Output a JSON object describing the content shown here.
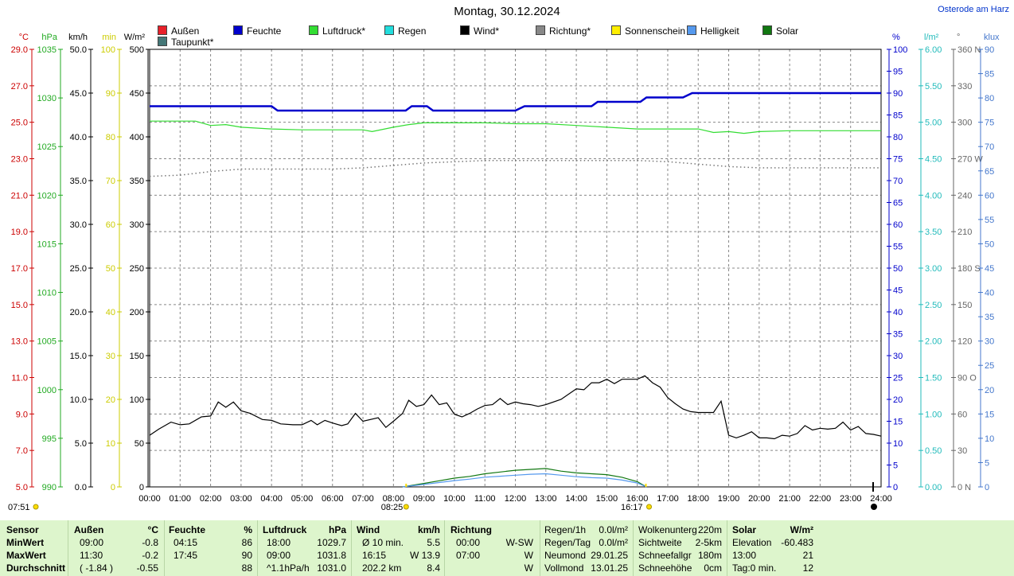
{
  "title": "Montag, 30.12.2024",
  "station": "Osterode am Harz",
  "legend": [
    {
      "label": "Außen",
      "color": "#e8202a"
    },
    {
      "label": "Feuchte",
      "color": "#0000cc"
    },
    {
      "label": "Luftdruck*",
      "color": "#33dd33"
    },
    {
      "label": "Regen",
      "color": "#22dddd"
    },
    {
      "label": "Wind*",
      "color": "#000000"
    },
    {
      "label": "Richtung*",
      "color": "#888888"
    },
    {
      "label": "Sonnenschein",
      "color": "#ffee00"
    },
    {
      "label": "Helligkeit",
      "color": "#5599ee"
    },
    {
      "label": "Solar",
      "color": "#117711"
    },
    {
      "label": "Taupunkt*",
      "color": "#447777"
    }
  ],
  "axes_left": [
    {
      "unit": "°C",
      "color": "#cc0000",
      "ticks": [
        "29.0",
        "27.0",
        "25.0",
        "23.0",
        "21.0",
        "19.0",
        "17.0",
        "15.0",
        "13.0",
        "11.0",
        "9.0",
        "7.0",
        "5.0"
      ]
    },
    {
      "unit": "hPa",
      "color": "#22aa22",
      "ticks": [
        "1035",
        "1030",
        "1025",
        "1020",
        "1015",
        "1010",
        "1005",
        "1000",
        "995",
        "990"
      ]
    },
    {
      "unit": "km/h",
      "color": "#000000",
      "ticks": [
        "50.0",
        "45.0",
        "40.0",
        "35.0",
        "30.0",
        "25.0",
        "20.0",
        "15.0",
        "10.0",
        "5.0",
        "0.0"
      ]
    },
    {
      "unit": "min",
      "color": "#cccc00",
      "ticks": [
        "100",
        "90",
        "80",
        "70",
        "60",
        "50",
        "40",
        "30",
        "20",
        "10",
        "0"
      ]
    },
    {
      "unit": "W/m²",
      "color": "#000000",
      "ticks": [
        "500",
        "450",
        "400",
        "350",
        "300",
        "250",
        "200",
        "150",
        "100",
        "50",
        "0"
      ]
    }
  ],
  "axes_right": [
    {
      "unit": "%",
      "color": "#0000cc",
      "ticks": [
        "100",
        "95",
        "90",
        "85",
        "80",
        "75",
        "70",
        "65",
        "60",
        "55",
        "50",
        "45",
        "40",
        "35",
        "30",
        "25",
        "20",
        "15",
        "10",
        "5",
        "0"
      ]
    },
    {
      "unit": "l/m²",
      "color": "#22bbbb",
      "ticks": [
        "6.00",
        "5.50",
        "5.00",
        "4.50",
        "4.00",
        "3.50",
        "3.00",
        "2.50",
        "2.00",
        "1.50",
        "1.00",
        "0.50",
        "0.00"
      ]
    },
    {
      "unit": "°",
      "color": "#666666",
      "ticks": [
        "360 N",
        "330",
        "300",
        "270 W",
        "240",
        "210",
        "180 S",
        "150",
        "120",
        "90 O",
        "60",
        "30",
        "0 N"
      ]
    },
    {
      "unit": "klux",
      "color": "#4477cc",
      "ticks": [
        "90",
        "85",
        "80",
        "75",
        "70",
        "65",
        "60",
        "55",
        "50",
        "45",
        "40",
        "35",
        "30",
        "25",
        "20",
        "15",
        "10",
        "5",
        "0"
      ]
    }
  ],
  "x_ticks": [
    "00:00",
    "01:00",
    "02:00",
    "03:00",
    "04:00",
    "05:00",
    "06:00",
    "07:00",
    "08:00",
    "09:00",
    "10:00",
    "11:00",
    "12:00",
    "13:00",
    "14:00",
    "15:00",
    "16:00",
    "17:00",
    "18:00",
    "19:00",
    "20:00",
    "21:00",
    "22:00",
    "23:00",
    "24:00"
  ],
  "sun_markers": {
    "sunrise": "07:51",
    "sunrise_marker": "08:25",
    "sunset": "16:17"
  },
  "chart_data": {
    "type": "line",
    "x_unit": "hours",
    "xlim": [
      0,
      24
    ],
    "series": [
      {
        "name": "Feuchte",
        "color": "#0000cc",
        "axis": "%",
        "ylim": [
          0,
          100
        ],
        "x": [
          0,
          4.0,
          4.2,
          8.4,
          8.6,
          9.1,
          9.3,
          12.0,
          12.3,
          14.5,
          14.7,
          15.5,
          16.1,
          16.3,
          17.5,
          17.8,
          24
        ],
        "values": [
          87,
          87,
          86,
          86,
          87,
          87,
          86,
          86,
          87,
          87,
          88,
          88,
          88,
          89,
          89,
          90,
          90
        ]
      },
      {
        "name": "Luftdruck*",
        "color": "#33dd33",
        "axis": "hPa",
        "ylim": [
          990,
          1040
        ],
        "x": [
          0,
          1.5,
          2.0,
          2.5,
          3.0,
          4.0,
          5.0,
          6.0,
          7.0,
          7.3,
          8.0,
          8.5,
          9.0,
          10.0,
          11.0,
          12.0,
          13.0,
          14.0,
          15.0,
          16.0,
          17.0,
          18.0,
          18.5,
          19.0,
          19.5,
          20.0,
          21.0,
          22.0,
          23.0,
          24.0
        ],
        "values": [
          1031.8,
          1031.8,
          1031.3,
          1031.4,
          1031.1,
          1030.9,
          1030.8,
          1030.8,
          1030.8,
          1030.6,
          1031.1,
          1031.4,
          1031.6,
          1031.6,
          1031.6,
          1031.5,
          1031.5,
          1031.3,
          1031.1,
          1030.9,
          1030.9,
          1030.9,
          1030.5,
          1030.6,
          1030.4,
          1030.6,
          1030.7,
          1030.7,
          1030.7,
          1030.7
        ]
      },
      {
        "name": "Richtung*",
        "color": "#777777",
        "axis": "°",
        "ylim": [
          0,
          360
        ],
        "dotted": true,
        "x": [
          0,
          1,
          2,
          3,
          4,
          5,
          6,
          7,
          8,
          9,
          10,
          11,
          12,
          13,
          14,
          15,
          16,
          17,
          18,
          19,
          20,
          21,
          22,
          23,
          24
        ],
        "values": [
          256,
          257,
          260,
          262,
          262,
          262,
          262,
          263,
          265,
          267,
          268,
          269,
          269,
          269,
          269,
          269,
          269,
          268,
          266,
          264,
          263,
          263,
          263,
          263,
          263
        ]
      },
      {
        "name": "Wind*",
        "color": "#000000",
        "axis": "km/h",
        "ylim": [
          0,
          50
        ],
        "x": [
          0,
          0.3,
          0.7,
          1.0,
          1.3,
          1.7,
          2.0,
          2.25,
          2.5,
          2.75,
          3.0,
          3.3,
          3.7,
          4.0,
          4.3,
          4.7,
          5.0,
          5.3,
          5.5,
          5.75,
          6.0,
          6.3,
          6.5,
          6.75,
          7.0,
          7.5,
          7.75,
          8.0,
          8.3,
          8.5,
          8.75,
          9.0,
          9.25,
          9.5,
          9.75,
          10.0,
          10.25,
          10.5,
          10.75,
          11.0,
          11.25,
          11.5,
          11.75,
          12.0,
          12.25,
          12.5,
          12.75,
          13.0,
          13.5,
          14.0,
          14.25,
          14.5,
          14.75,
          15.0,
          15.25,
          15.5,
          15.75,
          16.0,
          16.25,
          16.5,
          16.75,
          17.0,
          17.25,
          17.5,
          17.75,
          18.0,
          18.5,
          18.75,
          19.0,
          19.25,
          19.5,
          19.75,
          20.0,
          20.25,
          20.5,
          20.75,
          21.0,
          21.25,
          21.5,
          21.75,
          22.0,
          22.25,
          22.5,
          22.75,
          23.0,
          23.25,
          23.5,
          23.75,
          24.0
        ],
        "values": [
          5.9,
          6.6,
          7.4,
          7.1,
          7.2,
          8.0,
          8.1,
          9.7,
          9.1,
          9.7,
          8.7,
          8.4,
          7.7,
          7.6,
          7.2,
          7.1,
          7.1,
          7.6,
          7.1,
          7.6,
          7.3,
          7.0,
          7.2,
          8.4,
          7.5,
          7.9,
          6.8,
          7.5,
          8.4,
          9.9,
          9.2,
          9.4,
          10.5,
          9.4,
          9.6,
          8.3,
          8.0,
          8.4,
          8.9,
          9.3,
          9.4,
          10.1,
          9.4,
          9.7,
          9.5,
          9.4,
          9.2,
          9.4,
          10.0,
          11.2,
          11.1,
          11.9,
          11.9,
          12.3,
          11.8,
          12.3,
          12.3,
          12.3,
          12.7,
          11.9,
          11.4,
          10.2,
          9.5,
          8.9,
          8.6,
          8.5,
          8.5,
          9.8,
          5.9,
          5.6,
          5.9,
          6.3,
          5.6,
          5.6,
          5.5,
          5.9,
          5.8,
          6.1,
          7.0,
          6.5,
          6.7,
          6.6,
          6.7,
          7.4,
          6.5,
          6.9,
          6.1,
          6.0,
          5.8
        ]
      },
      {
        "name": "Solar",
        "color": "#117711",
        "axis": "W/m²",
        "ylim": [
          0,
          500
        ],
        "x": [
          8.3,
          9.0,
          9.5,
          10.0,
          10.5,
          11.0,
          11.5,
          12.0,
          12.5,
          13.0,
          13.5,
          14.0,
          14.5,
          15.0,
          15.5,
          16.0,
          16.3
        ],
        "values": [
          0,
          4,
          7,
          10,
          12,
          15,
          17,
          19,
          20,
          21,
          18,
          16,
          15,
          14,
          11,
          6,
          0
        ]
      },
      {
        "name": "Regen",
        "color": "#22dddd",
        "axis": "l/m²",
        "ylim": [
          0,
          6
        ],
        "values": [
          0
        ]
      },
      {
        "name": "Helligkeit",
        "color": "#5599ee",
        "axis": "klux",
        "ylim": [
          0,
          90
        ],
        "x": [
          8.3,
          9.0,
          9.5,
          10.0,
          10.5,
          11.0,
          11.5,
          12.0,
          12.5,
          13.0,
          13.5,
          14.0,
          14.5,
          15.0,
          15.5,
          16.0,
          16.3
        ],
        "values": [
          0,
          0.5,
          0.9,
          1.3,
          1.6,
          2.0,
          2.2,
          2.4,
          2.6,
          2.7,
          2.4,
          2.1,
          1.9,
          1.8,
          1.4,
          0.8,
          0
        ]
      }
    ]
  },
  "stats": {
    "headers": {
      "sensor": "Sensor",
      "aussen": "Außen",
      "aussen_unit": "°C",
      "feuchte": "Feuchte",
      "feuchte_unit": "%",
      "luftdruck": "Luftdruck",
      "luftdruck_unit": "hPa",
      "wind": "Wind",
      "wind_unit": "km/h",
      "richtung": "Richtung",
      "solar": "Solar",
      "solar_unit": "W/m²"
    },
    "rows": [
      {
        "label": "MinWert",
        "aussen_t": "09:00",
        "aussen_v": "-0.8",
        "feuchte_t": "04:15",
        "feuchte_v": "86",
        "druck_t": "18:00",
        "druck_v": "1029.7",
        "wind_t": "Ø 10 min.",
        "wind_v": "5.5",
        "richt_t": "00:00",
        "richt_v": "W-SW",
        "extra1_k": "Regen/1h",
        "extra1_v": "0.0l/m²",
        "extra2_k": "Wolkenunterg",
        "extra2_v": "220m",
        "solar_k": "Elevation",
        "solar_v": "-60.483"
      },
      {
        "label": "MaxWert",
        "aussen_t": "11:30",
        "aussen_v": "-0.2",
        "feuchte_t": "17:45",
        "feuchte_v": "90",
        "druck_t": "09:00",
        "druck_v": "1031.8",
        "wind_t": "16:15",
        "wind_v": "W 13.9",
        "richt_t": "07:00",
        "richt_v": "W",
        "extra1_k": "Regen/Tag",
        "extra1_v": "0.0l/m²",
        "extra2_k": "Sichtweite",
        "extra2_v": "2-5km",
        "solar_k": "13:00",
        "solar_v": "21"
      },
      {
        "label": "",
        "aussen_t": "",
        "aussen_v": "",
        "feuchte_t": "",
        "feuchte_v": "",
        "druck_t": "",
        "druck_v": "",
        "wind_t": "",
        "wind_v": "",
        "richt_t": "",
        "richt_v": "",
        "extra1_k": "Neumond",
        "extra1_v": "29.01.25",
        "extra2_k": "Schneefallgr",
        "extra2_v": "180m",
        "solar_k": "",
        "solar_v": ""
      },
      {
        "label": "Durchschnitt",
        "aussen_t": "( -1.84 )",
        "aussen_v": "-0.55",
        "feuchte_t": "",
        "feuchte_v": "88",
        "druck_t": "^1.1hPa/h",
        "druck_v": "1031.0",
        "wind_t": "202.2 km",
        "wind_v": "8.4",
        "richt_t": "",
        "richt_v": "W",
        "extra1_k": "Vollmond",
        "extra1_v": "13.01.25",
        "extra2_k": "Schneehöhe",
        "extra2_v": "0cm",
        "solar_k": "Tag:0 min.",
        "solar_v": "12"
      }
    ]
  }
}
